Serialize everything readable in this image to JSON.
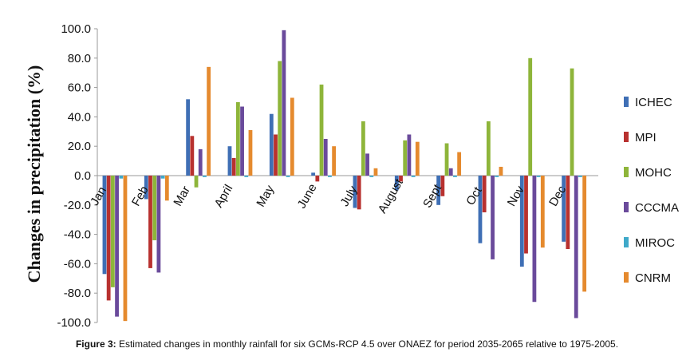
{
  "chart_data": {
    "type": "bar",
    "ylabel": "Changes in precipitation (%)",
    "xlabel": "",
    "ylim": [
      -100,
      100
    ],
    "yticks": [
      "100.0",
      "80.0",
      "60.0",
      "40.0",
      "20.0",
      "0.0",
      "-20.0",
      "-40.0",
      "-60.0",
      "-80.0",
      "-100.0"
    ],
    "categories": [
      "Jan",
      "Feb",
      "Mar",
      "April",
      "May",
      "June",
      "July",
      "August",
      "Sept",
      "Oct",
      "Nov",
      "Dec"
    ],
    "series": [
      {
        "name": "ICHEC",
        "color": "#3f6fb5",
        "values": [
          -67,
          -16,
          52,
          20,
          42,
          2,
          -22,
          -10,
          -20,
          -46,
          -62,
          -45
        ]
      },
      {
        "name": "MPI",
        "color": "#b8312f",
        "values": [
          -85,
          -63,
          27,
          12,
          28,
          -4,
          -23,
          -4,
          -14,
          -25,
          -53,
          -50
        ]
      },
      {
        "name": "MOHC",
        "color": "#8eb53a",
        "values": [
          -76,
          -44,
          -8,
          50,
          78,
          62,
          37,
          24,
          22,
          37,
          80,
          73
        ]
      },
      {
        "name": "CCCMA",
        "color": "#6a4a9b",
        "values": [
          -96,
          -66,
          18,
          47,
          99,
          25,
          15,
          28,
          5,
          -57,
          -86,
          -97
        ]
      },
      {
        "name": "MIROC",
        "color": "#3fa9c9",
        "values": [
          -2,
          -2,
          -1,
          -1,
          -1,
          -1,
          -1,
          -1,
          -1,
          -1,
          -1,
          -1
        ]
      },
      {
        "name": "CNRM",
        "color": "#e58a2e",
        "values": [
          -99,
          -17,
          74,
          31,
          53,
          20,
          5,
          23,
          16,
          6,
          -49,
          -79
        ]
      }
    ],
    "grid": false,
    "legend_position": "right"
  },
  "caption": {
    "label": "Figure 3:",
    "text": " Estimated changes in monthly rainfall for six GCMs-RCP 4.5 over ONAEZ for period 2035-2065 relative to 1975-2005."
  }
}
